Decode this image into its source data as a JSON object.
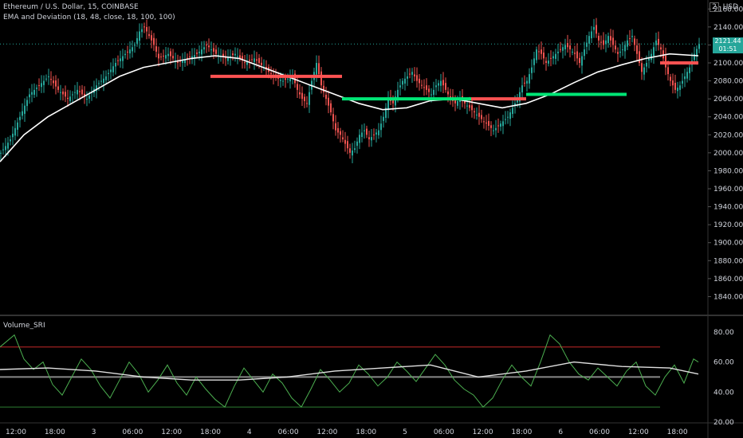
{
  "header": {
    "symbol_line": "Ethereum / U.S. Dollar, 15, COINBASE",
    "indicator_line": "EMA and Deviation (18, 48, close, 18, 100, 100)",
    "sub_indicator": "Volume_SRI",
    "currency": "USD",
    "currency_badge": "2"
  },
  "price_badge": {
    "value": "2121.44",
    "countdown": "01:51"
  },
  "colors": {
    "up": "#26a69a",
    "down": "#ef5350",
    "bull_band": "#00e676",
    "bear_band": "#ff5252",
    "ema": "#ffffff",
    "osc": "#4caf50"
  },
  "chart_data": [
    {
      "type": "candlestick",
      "title": "Ethereum / U.S. Dollar, 15, COINBASE",
      "ylim": [
        1820,
        2170
      ],
      "y_ticks": [
        "2160.00",
        "2140.00",
        "2120.00",
        "2100.00",
        "2080.00",
        "2060.00",
        "2040.00",
        "2020.00",
        "2000.00",
        "1980.00",
        "1960.00",
        "1940.00",
        "1920.00",
        "1900.00",
        "1880.00",
        "1860.00",
        "1840.00"
      ],
      "x_ticks": [
        "12:00",
        "18:00",
        "3",
        "06:00",
        "12:00",
        "18:00",
        "4",
        "06:00",
        "12:00",
        "18:00",
        "5",
        "06:00",
        "12:00",
        "18:00",
        "6",
        "06:00",
        "12:00",
        "18:00"
      ],
      "close_path": [
        [
          0,
          2000
        ],
        [
          4,
          2015
        ],
        [
          8,
          2040
        ],
        [
          12,
          2065
        ],
        [
          16,
          2075
        ],
        [
          20,
          2085
        ],
        [
          24,
          2070
        ],
        [
          28,
          2060
        ],
        [
          32,
          2070
        ],
        [
          36,
          2060
        ],
        [
          40,
          2075
        ],
        [
          44,
          2085
        ],
        [
          48,
          2100
        ],
        [
          52,
          2110
        ],
        [
          56,
          2120
        ],
        [
          58,
          2135
        ],
        [
          60,
          2140
        ],
        [
          62,
          2130
        ],
        [
          64,
          2120
        ],
        [
          66,
          2105
        ],
        [
          70,
          2110
        ],
        [
          74,
          2100
        ],
        [
          78,
          2105
        ],
        [
          82,
          2110
        ],
        [
          86,
          2120
        ],
        [
          90,
          2110
        ],
        [
          94,
          2105
        ],
        [
          98,
          2110
        ],
        [
          102,
          2100
        ],
        [
          106,
          2105
        ],
        [
          110,
          2095
        ],
        [
          114,
          2085
        ],
        [
          118,
          2080
        ],
        [
          122,
          2085
        ],
        [
          124,
          2070
        ],
        [
          126,
          2060
        ],
        [
          128,
          2055
        ],
        [
          130,
          2080
        ],
        [
          132,
          2100
        ],
        [
          134,
          2075
        ],
        [
          136,
          2060
        ],
        [
          138,
          2045
        ],
        [
          140,
          2025
        ],
        [
          142,
          2020
        ],
        [
          144,
          2010
        ],
        [
          146,
          2000
        ],
        [
          148,
          2005
        ],
        [
          150,
          2020
        ],
        [
          152,
          2025
        ],
        [
          154,
          2015
        ],
        [
          156,
          2020
        ],
        [
          158,
          2025
        ],
        [
          160,
          2040
        ],
        [
          162,
          2060
        ],
        [
          164,
          2055
        ],
        [
          166,
          2070
        ],
        [
          168,
          2080
        ],
        [
          170,
          2085
        ],
        [
          172,
          2090
        ],
        [
          174,
          2080
        ],
        [
          176,
          2075
        ],
        [
          178,
          2070
        ],
        [
          180,
          2065
        ],
        [
          182,
          2075
        ],
        [
          184,
          2080
        ],
        [
          186,
          2070
        ],
        [
          188,
          2060
        ],
        [
          190,
          2055
        ],
        [
          192,
          2060
        ],
        [
          194,
          2055
        ],
        [
          196,
          2050
        ],
        [
          198,
          2045
        ],
        [
          200,
          2040
        ],
        [
          202,
          2035
        ],
        [
          204,
          2030
        ],
        [
          206,
          2025
        ],
        [
          208,
          2030
        ],
        [
          210,
          2035
        ],
        [
          212,
          2040
        ],
        [
          214,
          2050
        ],
        [
          216,
          2060
        ],
        [
          218,
          2075
        ],
        [
          220,
          2080
        ],
        [
          222,
          2095
        ],
        [
          224,
          2115
        ],
        [
          226,
          2110
        ],
        [
          228,
          2100
        ],
        [
          230,
          2105
        ],
        [
          232,
          2110
        ],
        [
          234,
          2115
        ],
        [
          236,
          2120
        ],
        [
          238,
          2115
        ],
        [
          240,
          2110
        ],
        [
          242,
          2100
        ],
        [
          244,
          2115
        ],
        [
          246,
          2130
        ],
        [
          248,
          2140
        ],
        [
          250,
          2125
        ],
        [
          252,
          2120
        ],
        [
          254,
          2130
        ],
        [
          256,
          2120
        ],
        [
          258,
          2110
        ],
        [
          260,
          2115
        ],
        [
          262,
          2125
        ],
        [
          264,
          2130
        ],
        [
          266,
          2110
        ],
        [
          268,
          2090
        ],
        [
          270,
          2100
        ],
        [
          272,
          2110
        ],
        [
          274,
          2125
        ],
        [
          276,
          2115
        ],
        [
          278,
          2095
        ],
        [
          280,
          2080
        ],
        [
          282,
          2070
        ],
        [
          284,
          2075
        ],
        [
          286,
          2085
        ],
        [
          288,
          2095
        ],
        [
          290,
          2110
        ],
        [
          292,
          2121
        ]
      ],
      "ema_path": [
        [
          0,
          1990
        ],
        [
          10,
          2020
        ],
        [
          20,
          2040
        ],
        [
          30,
          2055
        ],
        [
          40,
          2070
        ],
        [
          50,
          2085
        ],
        [
          60,
          2095
        ],
        [
          70,
          2100
        ],
        [
          80,
          2105
        ],
        [
          90,
          2108
        ],
        [
          100,
          2105
        ],
        [
          110,
          2095
        ],
        [
          120,
          2085
        ],
        [
          130,
          2075
        ],
        [
          140,
          2065
        ],
        [
          150,
          2055
        ],
        [
          160,
          2048
        ],
        [
          170,
          2050
        ],
        [
          180,
          2058
        ],
        [
          190,
          2060
        ],
        [
          200,
          2055
        ],
        [
          210,
          2050
        ],
        [
          220,
          2055
        ],
        [
          230,
          2065
        ],
        [
          240,
          2078
        ],
        [
          250,
          2090
        ],
        [
          260,
          2098
        ],
        [
          270,
          2105
        ],
        [
          280,
          2110
        ],
        [
          292,
          2108
        ]
      ],
      "bear_bands": [
        [
          [
            88,
            2085
          ],
          [
            143,
            2085
          ]
        ],
        [
          [
            197,
            2060
          ],
          [
            220,
            2060
          ]
        ],
        [
          [
            276,
            2100
          ],
          [
            292,
            2100
          ]
        ]
      ],
      "bull_bands": [
        [
          [
            143,
            2060
          ],
          [
            197,
            2060
          ]
        ],
        [
          [
            220,
            2065
          ],
          [
            262,
            2065
          ]
        ]
      ]
    },
    {
      "type": "line",
      "title": "Volume_SRI",
      "ylim": [
        20,
        90
      ],
      "y_ticks": [
        "80.00",
        "60.00",
        "40.00",
        "20.00"
      ],
      "levels": [
        70,
        50,
        30
      ],
      "fast_line": [
        [
          0,
          70
        ],
        [
          6,
          78
        ],
        [
          10,
          62
        ],
        [
          14,
          55
        ],
        [
          18,
          60
        ],
        [
          22,
          45
        ],
        [
          26,
          38
        ],
        [
          30,
          50
        ],
        [
          34,
          62
        ],
        [
          38,
          55
        ],
        [
          42,
          44
        ],
        [
          46,
          36
        ],
        [
          50,
          48
        ],
        [
          54,
          60
        ],
        [
          58,
          52
        ],
        [
          62,
          40
        ],
        [
          66,
          48
        ],
        [
          70,
          58
        ],
        [
          74,
          46
        ],
        [
          78,
          38
        ],
        [
          82,
          50
        ],
        [
          86,
          42
        ],
        [
          90,
          35
        ],
        [
          94,
          30
        ],
        [
          98,
          44
        ],
        [
          102,
          56
        ],
        [
          106,
          48
        ],
        [
          110,
          40
        ],
        [
          114,
          52
        ],
        [
          118,
          46
        ],
        [
          122,
          36
        ],
        [
          126,
          30
        ],
        [
          130,
          42
        ],
        [
          134,
          55
        ],
        [
          138,
          48
        ],
        [
          142,
          40
        ],
        [
          146,
          46
        ],
        [
          150,
          58
        ],
        [
          154,
          52
        ],
        [
          158,
          44
        ],
        [
          162,
          50
        ],
        [
          166,
          60
        ],
        [
          170,
          54
        ],
        [
          174,
          47
        ],
        [
          178,
          56
        ],
        [
          182,
          65
        ],
        [
          186,
          58
        ],
        [
          190,
          48
        ],
        [
          194,
          42
        ],
        [
          198,
          38
        ],
        [
          202,
          30
        ],
        [
          206,
          36
        ],
        [
          210,
          48
        ],
        [
          214,
          58
        ],
        [
          218,
          50
        ],
        [
          222,
          44
        ],
        [
          226,
          60
        ],
        [
          230,
          78
        ],
        [
          234,
          72
        ],
        [
          238,
          60
        ],
        [
          242,
          52
        ],
        [
          246,
          48
        ],
        [
          250,
          56
        ],
        [
          254,
          50
        ],
        [
          258,
          44
        ],
        [
          262,
          54
        ],
        [
          266,
          60
        ],
        [
          270,
          44
        ],
        [
          274,
          38
        ],
        [
          278,
          50
        ],
        [
          282,
          58
        ],
        [
          286,
          46
        ],
        [
          290,
          62
        ],
        [
          292,
          60
        ]
      ],
      "slow_line": [
        [
          0,
          55
        ],
        [
          20,
          56
        ],
        [
          40,
          54
        ],
        [
          60,
          50
        ],
        [
          80,
          48
        ],
        [
          100,
          48
        ],
        [
          120,
          50
        ],
        [
          140,
          54
        ],
        [
          160,
          56
        ],
        [
          180,
          58
        ],
        [
          200,
          50
        ],
        [
          220,
          54
        ],
        [
          240,
          60
        ],
        [
          260,
          57
        ],
        [
          280,
          56
        ],
        [
          292,
          52
        ]
      ]
    }
  ]
}
